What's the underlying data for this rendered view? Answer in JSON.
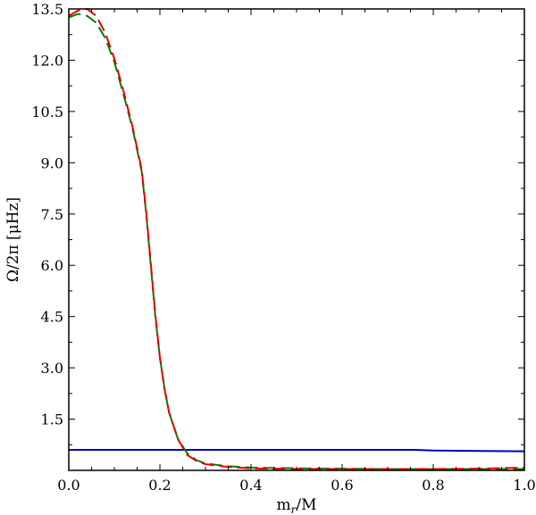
{
  "chart_data": {
    "type": "line",
    "xlabel": "m_r/M",
    "xlabel_main": "m",
    "xlabel_sub": "r",
    "xlabel_rest": "/M",
    "ylabel": "Ω/2π [μHz]",
    "xlim": [
      0.0,
      1.0
    ],
    "ylim": [
      0.0,
      13.5
    ],
    "xticks": [
      "0.0",
      "0.2",
      "0.4",
      "0.6",
      "0.8",
      "1.0"
    ],
    "yticks": [
      "1.5",
      "3.0",
      "4.5",
      "6.0",
      "7.5",
      "9.0",
      "10.5",
      "12.0",
      "13.5"
    ],
    "grid": false,
    "series": [
      {
        "color": "#0000b0",
        "style": "solid",
        "x": [
          0.0,
          0.2,
          0.4,
          0.6,
          0.76,
          0.8,
          0.9,
          1.0
        ],
        "y": [
          0.6,
          0.6,
          0.6,
          0.6,
          0.6,
          0.58,
          0.57,
          0.56
        ]
      },
      {
        "color": "#008000",
        "style": "dashed",
        "x": [
          0.0,
          0.02,
          0.04,
          0.06,
          0.08,
          0.1,
          0.12,
          0.14,
          0.16,
          0.17,
          0.18,
          0.19,
          0.2,
          0.21,
          0.22,
          0.24,
          0.26,
          0.28,
          0.3,
          0.35,
          0.4,
          0.5,
          0.6,
          0.7,
          0.8,
          0.9,
          1.0
        ],
        "y": [
          13.25,
          13.35,
          13.3,
          13.1,
          12.65,
          11.95,
          11.0,
          10.0,
          8.75,
          7.5,
          6.0,
          4.5,
          3.3,
          2.4,
          1.7,
          0.9,
          0.5,
          0.3,
          0.2,
          0.12,
          0.08,
          0.06,
          0.05,
          0.04,
          0.04,
          0.04,
          0.04
        ]
      },
      {
        "color": "#e00000",
        "style": "dashed",
        "x": [
          0.0,
          0.02,
          0.04,
          0.06,
          0.08,
          0.1,
          0.12,
          0.14,
          0.16,
          0.17,
          0.18,
          0.19,
          0.2,
          0.21,
          0.22,
          0.24,
          0.26,
          0.28,
          0.3,
          0.35,
          0.4,
          0.5,
          0.6,
          0.7,
          0.8,
          0.9,
          1.0
        ],
        "y": [
          13.3,
          13.45,
          13.5,
          13.3,
          12.8,
          12.05,
          11.1,
          10.05,
          8.8,
          7.55,
          6.05,
          4.55,
          3.3,
          2.4,
          1.7,
          0.9,
          0.45,
          0.28,
          0.18,
          0.1,
          0.06,
          0.04,
          0.04,
          0.04,
          0.04,
          0.05,
          0.08
        ]
      }
    ]
  }
}
